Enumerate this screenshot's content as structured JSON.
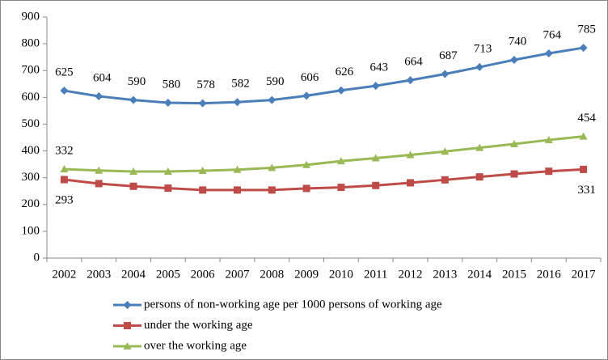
{
  "chart_data": {
    "type": "line",
    "categories": [
      "2002",
      "2003",
      "2004",
      "2005",
      "2006",
      "2007",
      "2008",
      "2009",
      "2010",
      "2011",
      "2012",
      "2013",
      "2014",
      "2015",
      "2016",
      "2017"
    ],
    "series": [
      {
        "name": "persons of non-working age per 1000 persons of working age",
        "color": "#4a7ebb",
        "marker": "diamond",
        "values": [
          625,
          604,
          590,
          580,
          578,
          582,
          590,
          606,
          626,
          643,
          664,
          687,
          713,
          740,
          764,
          785
        ],
        "value_labels": [
          "625",
          "604",
          "590",
          "580",
          "578",
          "582",
          "590",
          "606",
          "626",
          "643",
          "664",
          "687",
          "713",
          "740",
          "764",
          "785"
        ]
      },
      {
        "name": "under the working age",
        "color": "#be4b48",
        "marker": "square",
        "values": [
          293,
          278,
          268,
          261,
          254,
          254,
          254,
          260,
          264,
          271,
          281,
          292,
          303,
          314,
          324,
          331
        ],
        "value_labels": [
          "293",
          null,
          null,
          null,
          null,
          null,
          null,
          null,
          null,
          null,
          null,
          null,
          null,
          null,
          null,
          "331"
        ]
      },
      {
        "name": "over the working age",
        "color": "#98b954",
        "marker": "triangle",
        "values": [
          332,
          327,
          323,
          323,
          326,
          330,
          337,
          348,
          362,
          373,
          385,
          398,
          412,
          426,
          441,
          454
        ],
        "value_labels": [
          "332",
          null,
          null,
          null,
          null,
          null,
          null,
          null,
          null,
          null,
          null,
          null,
          null,
          null,
          null,
          "454"
        ]
      }
    ],
    "ylim": [
      0,
      900
    ],
    "yticks": [
      0,
      100,
      200,
      300,
      400,
      500,
      600,
      700,
      800,
      900
    ],
    "grid": false,
    "legend": "bottom"
  }
}
